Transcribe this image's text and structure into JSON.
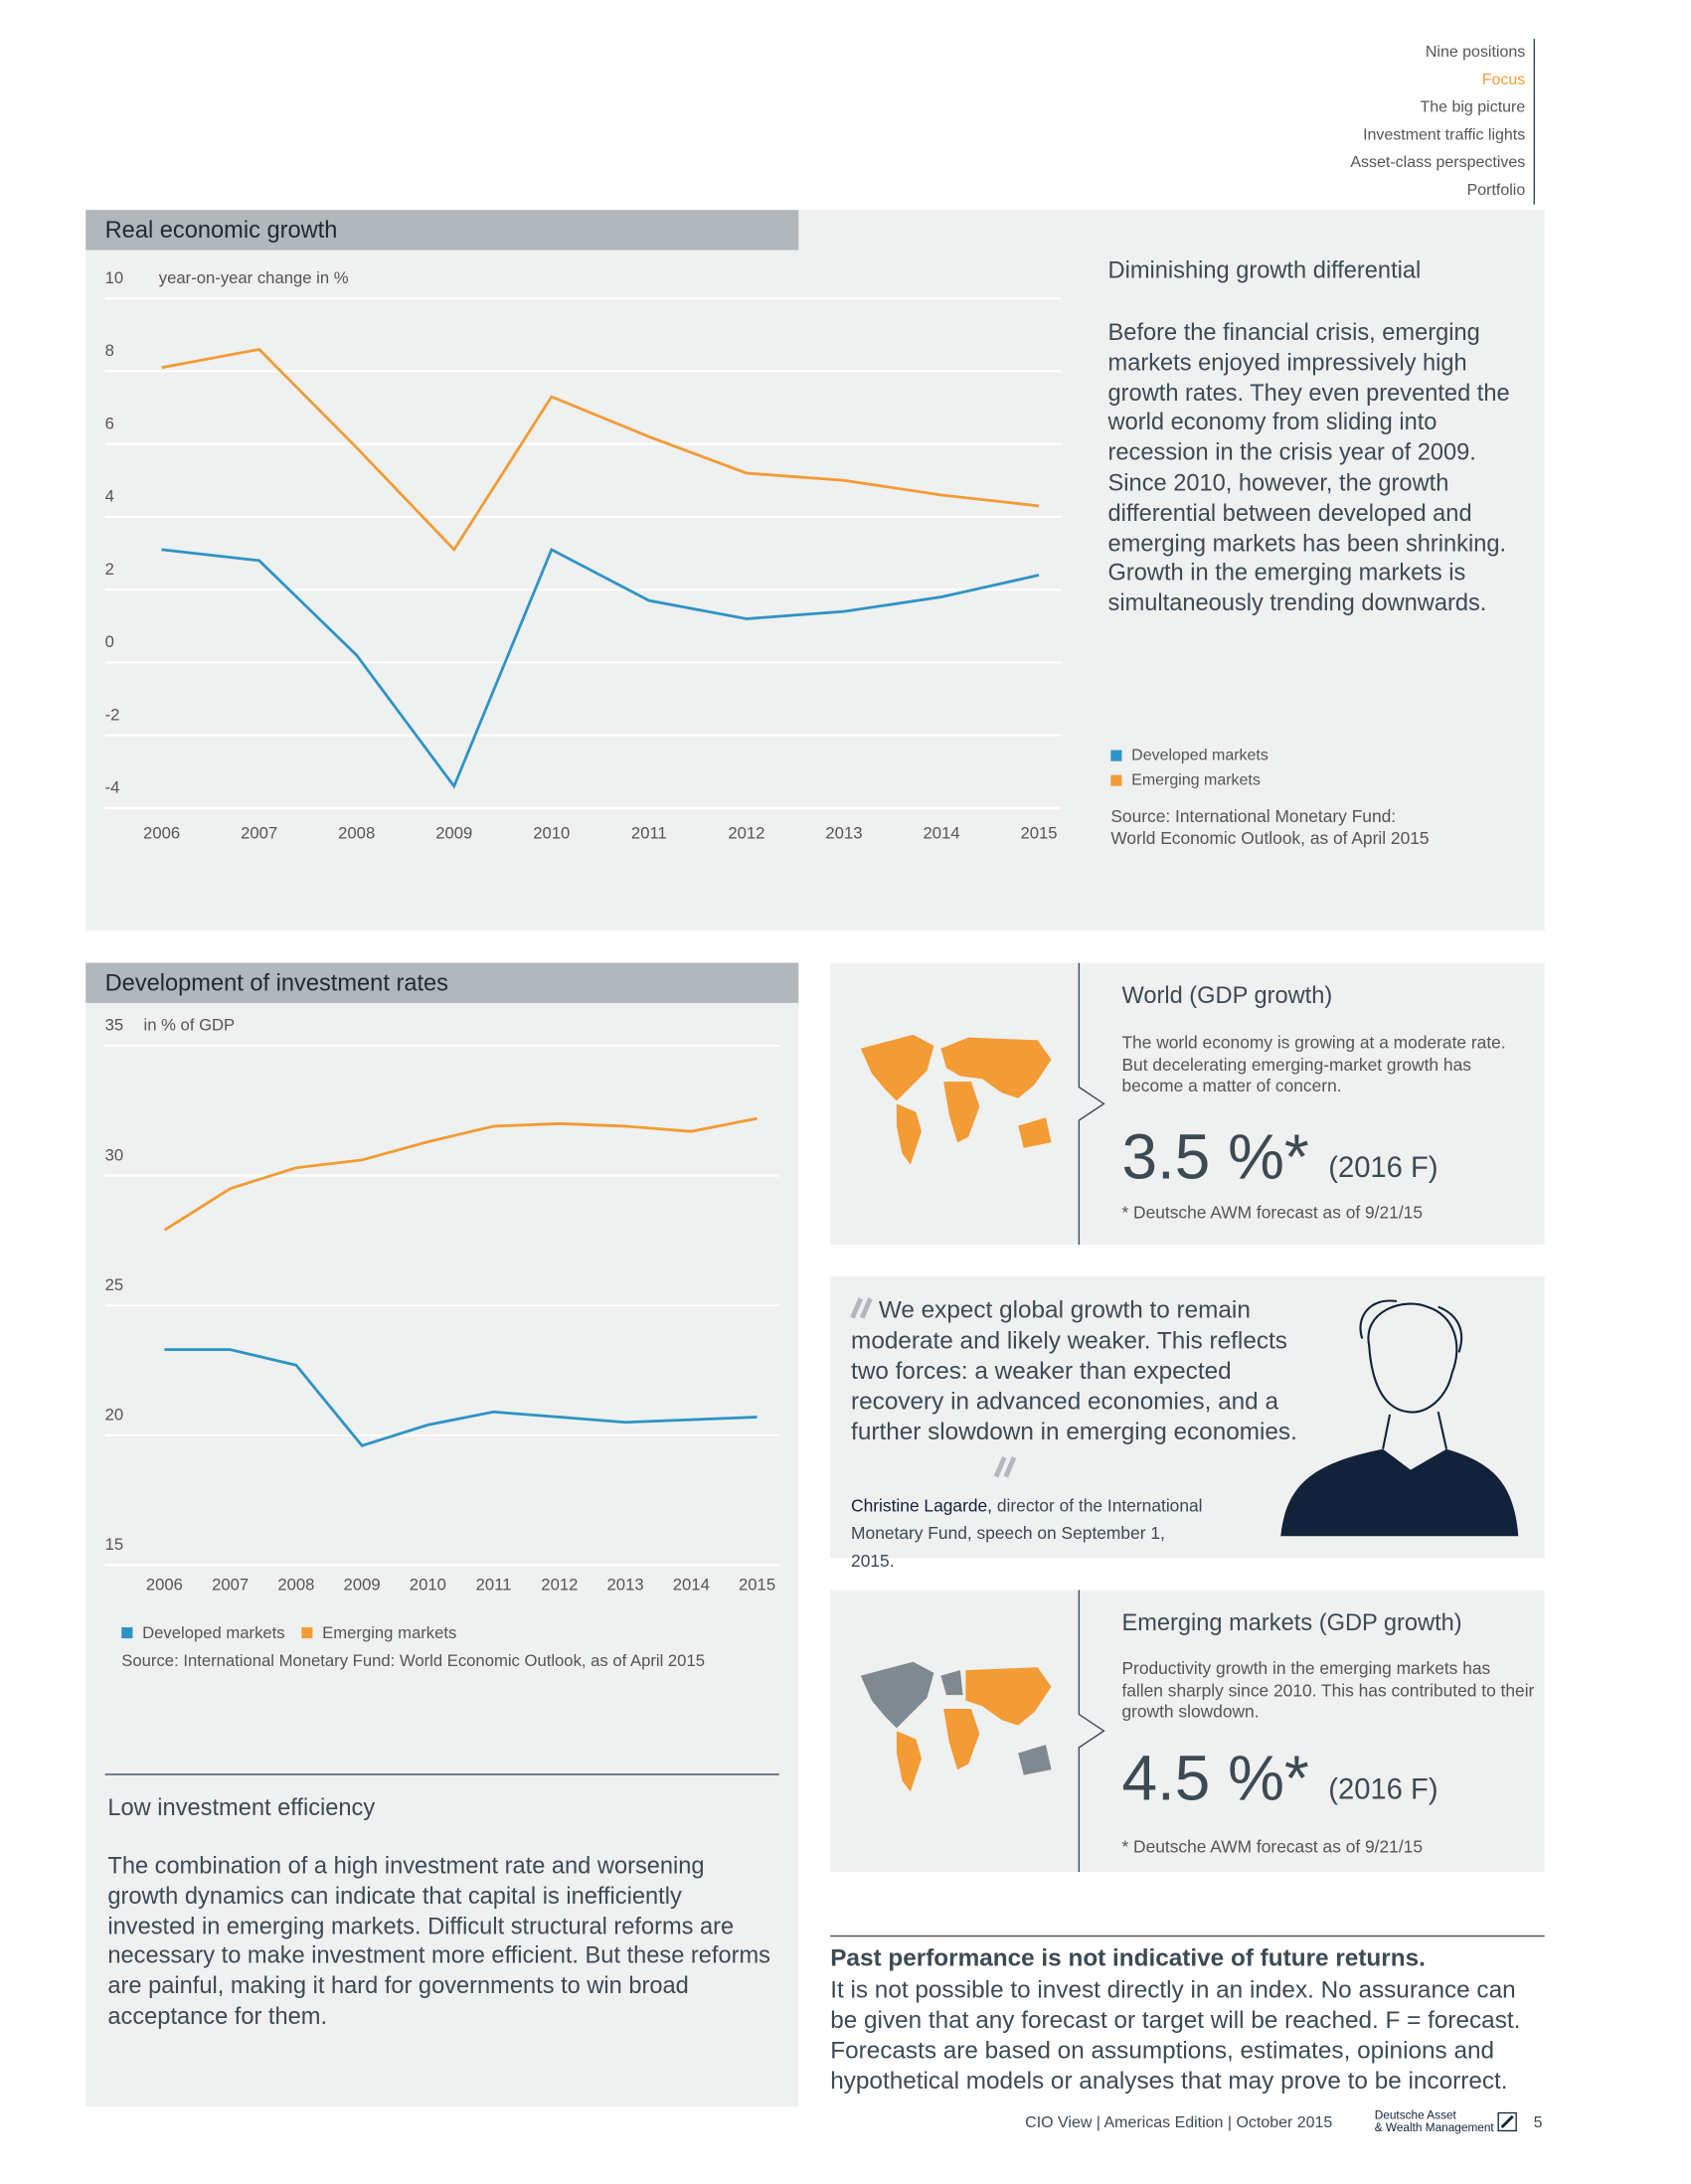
{
  "nav": {
    "items": [
      "Nine positions",
      "Focus",
      "The big picture",
      "Investment traffic lights",
      "Asset-class perspectives",
      "Portfolio"
    ]
  },
  "chart_data": [
    {
      "type": "line",
      "title": "Real economic growth",
      "y_label": "year-on-year change in %",
      "categories": [
        "2006",
        "2007",
        "2008",
        "2009",
        "2010",
        "2011",
        "2012",
        "2013",
        "2014",
        "2015"
      ],
      "series": [
        {
          "name": "Developed markets",
          "color": "#2e93c6",
          "values": [
            3.1,
            2.8,
            0.2,
            -3.4,
            3.1,
            1.7,
            1.2,
            1.4,
            1.8,
            2.4
          ]
        },
        {
          "name": "Emerging markets",
          "color": "#f39b34",
          "values": [
            8.1,
            8.6,
            5.9,
            3.1,
            7.3,
            6.2,
            5.2,
            5.0,
            4.6,
            4.3
          ]
        }
      ],
      "ylim": [
        -4,
        10
      ],
      "yticks": [
        -4,
        -2,
        0,
        2,
        4,
        6,
        8,
        10
      ],
      "grid": true,
      "source": "Source: International Monetary Fund: World Economic Outlook, as of April 2015"
    },
    {
      "type": "line",
      "title": "Development of investment rates",
      "y_label": "in % of GDP",
      "categories": [
        "2006",
        "2007",
        "2008",
        "2009",
        "2010",
        "2011",
        "2012",
        "2013",
        "2014",
        "2015"
      ],
      "series": [
        {
          "name": "Developed markets",
          "color": "#2e93c6",
          "values": [
            23.3,
            23.3,
            22.7,
            19.6,
            20.4,
            20.9,
            20.7,
            20.5,
            20.6,
            20.7
          ]
        },
        {
          "name": "Emerging markets",
          "color": "#f39b34",
          "values": [
            27.9,
            29.5,
            30.3,
            30.6,
            31.3,
            31.9,
            32.0,
            31.9,
            31.7,
            32.2
          ]
        }
      ],
      "ylim": [
        15,
        35
      ],
      "yticks": [
        15,
        20,
        25,
        30,
        35
      ],
      "grid": true,
      "source": "Source: International Monetary Fund: World Economic Outlook, as of April 2015"
    }
  ],
  "growth_panel": {
    "heading": "Diminishing growth differential",
    "body": "Before the financial crisis, emerging markets enjoyed impressively high growth rates. They even prevented the world economy from sliding into recession in the crisis year of 2009. Since 2010, however, the growth differential between developed and emerging markets has been shrinking. Growth in the emerging markets is simultaneously trending downwards."
  },
  "world": {
    "title": "World (GDP growth)",
    "body": "The world economy is growing at a moderate rate. But decelerating emerging-market growth has become a matter of concern.",
    "value": "3.5 %*",
    "note": "(2016 F)",
    "footnote": "* Deutsche AWM forecast as of 9/21/15"
  },
  "quote": {
    "text": "We expect global growth to remain moderate and likely weaker. This reflects two forces: a weaker than expected recovery in advanced economies, and a further slowdown in emerging economies.",
    "author": "Christine Lagarde,",
    "role": "director of the International Monetary Fund, speech on September 1, 2015."
  },
  "emerging": {
    "title": "Emerging markets (GDP growth)",
    "body": "Productivity growth in the emerging markets has fallen sharply since 2010. This has contributed to their growth slowdown.",
    "value": "4.5 %*",
    "note": "(2016 F)",
    "footnote": "* Deutsche AWM forecast as of 9/21/15"
  },
  "efficiency": {
    "heading": "Low investment efficiency",
    "body": "The combination of a high investment rate and worsening growth dynamics can indicate that capital is inefficiently invested in emerging markets. Difficult structural reforms are necessary to make investment more efficient. But these reforms are painful, making it hard for governments to win broad acceptance for them."
  },
  "disclaimer": {
    "heading": "Past performance is not indicative of future returns.",
    "body": "It is not possible to invest directly in an index. No assurance can be given that any forecast or target will be reached. F = forecast. Forecasts are based on assumptions, estimates, opinions and hypothetical models or analyses that may prove to be incorrect."
  },
  "footer": {
    "publication": "CIO View | Americas Edition | October 2015",
    "brand": [
      "Deutsche Asset",
      "& Wealth Management"
    ],
    "page": "5"
  }
}
